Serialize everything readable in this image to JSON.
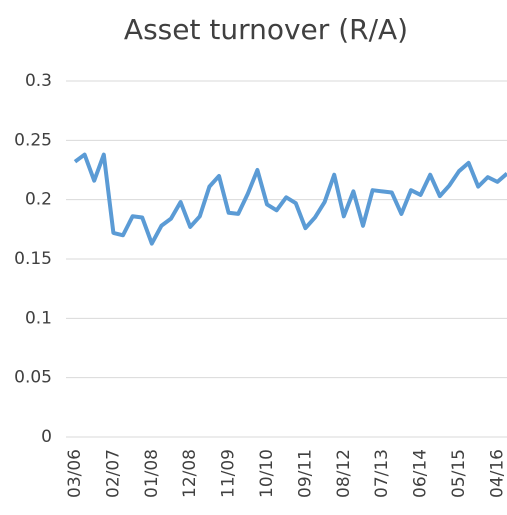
{
  "chart_data": {
    "type": "line",
    "title": "Asset turnover (R/A)",
    "categories": [
      "03/06",
      null,
      null,
      null,
      "02/07",
      null,
      null,
      null,
      "01/08",
      null,
      null,
      null,
      "12/08",
      null,
      null,
      null,
      "11/09",
      null,
      null,
      null,
      "10/10",
      null,
      null,
      null,
      "09/11",
      null,
      null,
      null,
      "08/12",
      null,
      null,
      null,
      "07/13",
      null,
      null,
      null,
      "06/14",
      null,
      null,
      null,
      "05/15",
      null,
      null,
      null,
      "04/16",
      null
    ],
    "series": [
      {
        "name": "Asset turnover (R/A)",
        "color": "#5b9bd5",
        "values": [
          0.232,
          0.238,
          0.216,
          0.238,
          0.172,
          0.17,
          0.186,
          0.185,
          0.163,
          0.178,
          0.184,
          0.198,
          0.177,
          0.186,
          0.211,
          0.22,
          0.189,
          0.188,
          0.205,
          0.225,
          0.196,
          0.191,
          0.202,
          0.197,
          0.176,
          0.185,
          0.198,
          0.221,
          0.186,
          0.207,
          0.178,
          0.208,
          0.207,
          0.206,
          0.188,
          0.208,
          0.204,
          0.221,
          0.203,
          0.212,
          0.224,
          0.231,
          0.211,
          0.219,
          0.215,
          0.222
        ]
      }
    ],
    "ylim": [
      0,
      0.3
    ],
    "yticks": [
      0,
      0.05,
      0.1,
      0.15,
      0.2,
      0.25,
      0.3
    ],
    "grid": true
  }
}
